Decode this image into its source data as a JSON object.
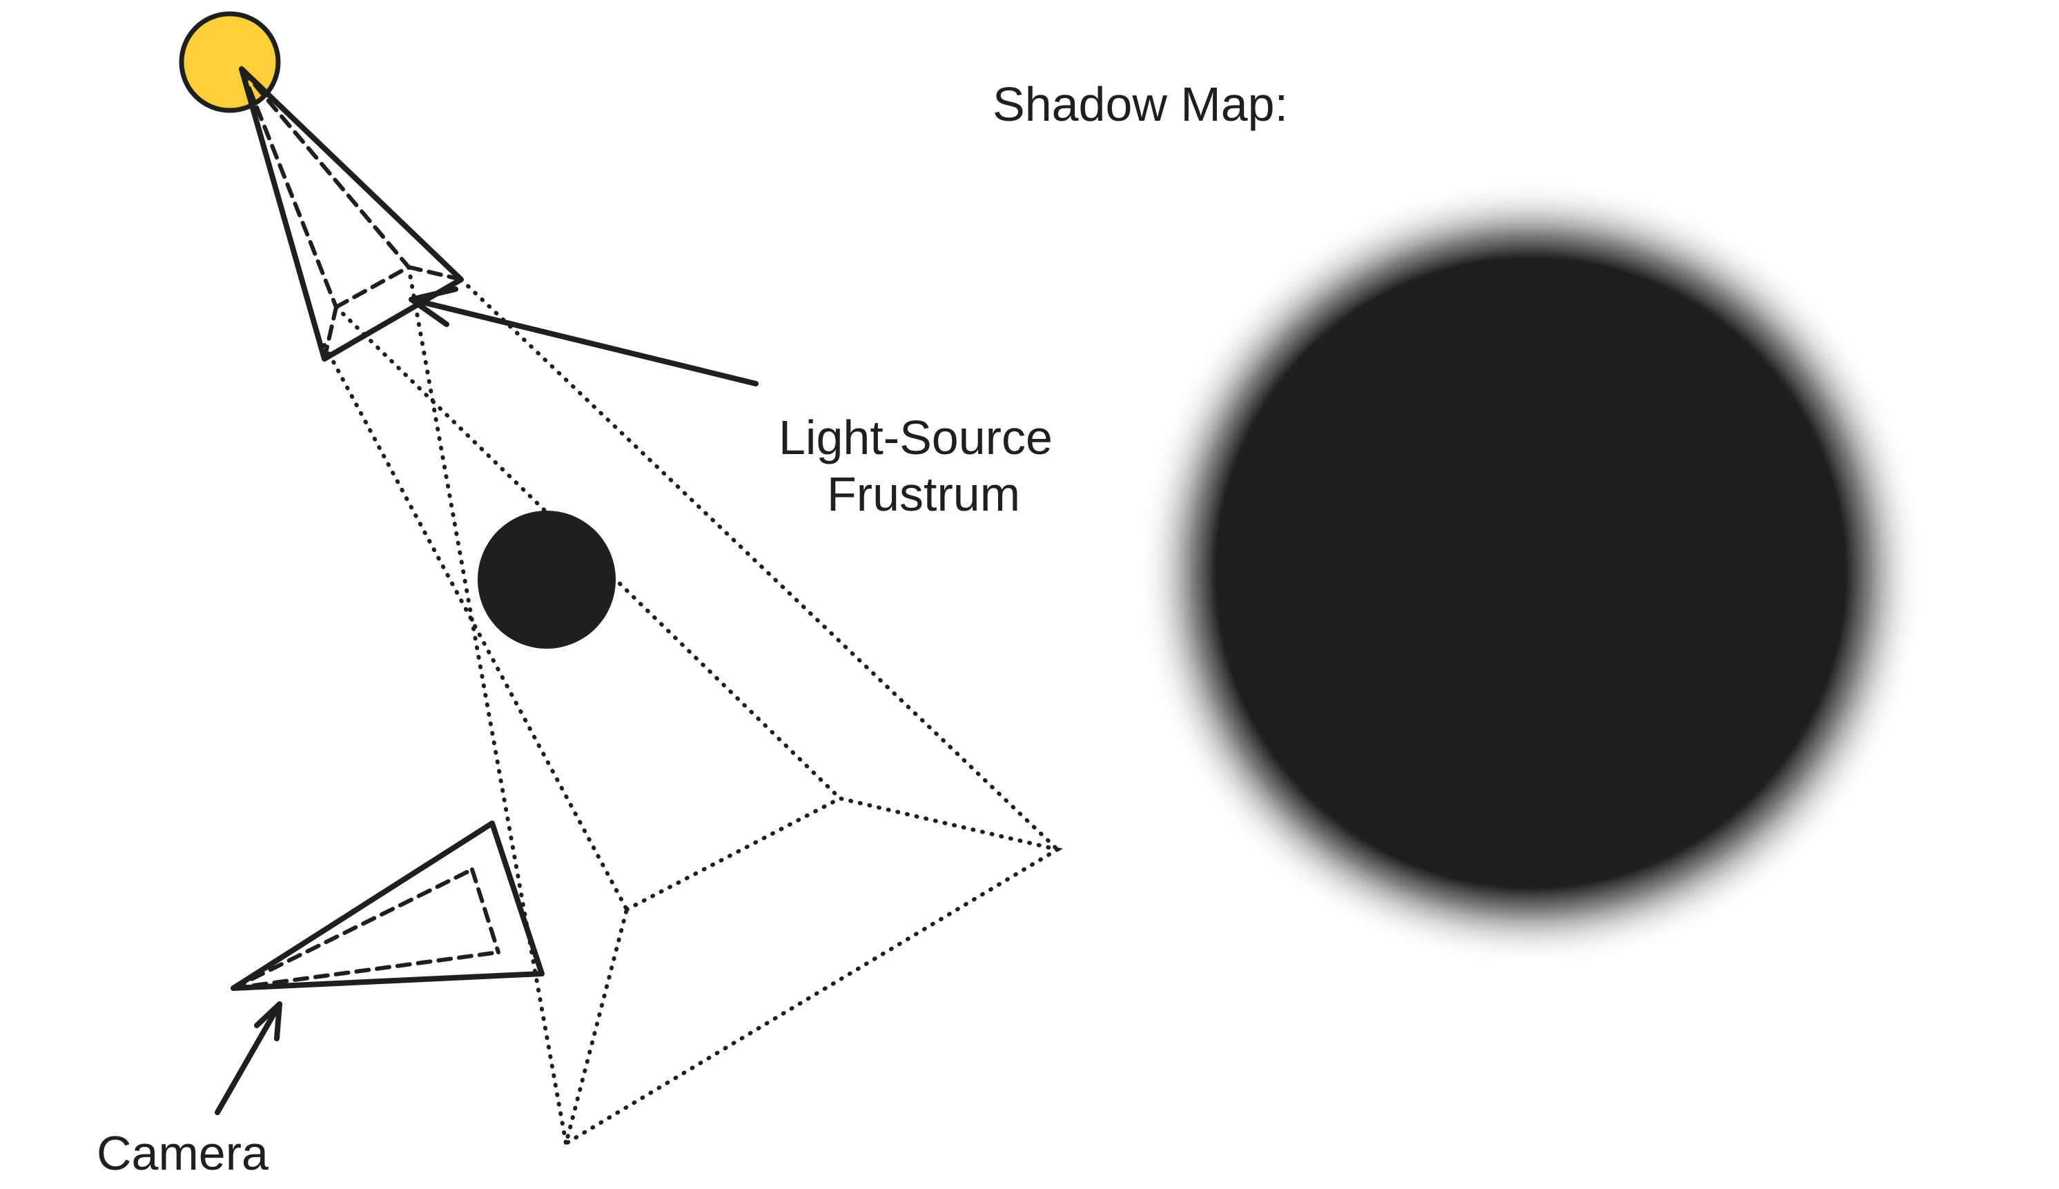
{
  "labels": {
    "shadow_map": "Shadow Map:",
    "light_frustum_line1": "Light-Source",
    "light_frustum_line2": "Frustrum",
    "camera": "Camera"
  },
  "colors": {
    "light_source": "#FDCF3A",
    "ink": "#1F1F1F",
    "background": "#FFFFFF"
  }
}
